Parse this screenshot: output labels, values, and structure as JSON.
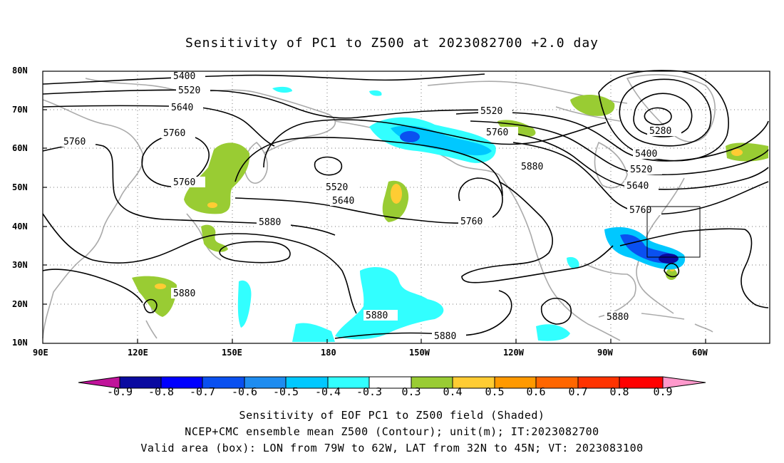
{
  "title": "Sensitivity of PC1 to Z500 at 2023082700 +2.0 day",
  "lat_labels": [
    "80N",
    "70N",
    "60N",
    "50N",
    "40N",
    "30N",
    "20N",
    "10N"
  ],
  "lon_labels": [
    "90E",
    "120E",
    "150E",
    "180",
    "150W",
    "120W",
    "90W",
    "60W"
  ],
  "contour_labels": [
    {
      "id": "c5400a",
      "text": "5400"
    },
    {
      "id": "c5520a",
      "text": "5520"
    },
    {
      "id": "c5640a",
      "text": "5640"
    },
    {
      "id": "c5760a",
      "text": "5760"
    },
    {
      "id": "c5760b",
      "text": "5760"
    },
    {
      "id": "c5760c",
      "text": "5760"
    },
    {
      "id": "c5520b",
      "text": "5520"
    },
    {
      "id": "c5640b",
      "text": "5640"
    },
    {
      "id": "c5880a",
      "text": "5880"
    },
    {
      "id": "c5880b",
      "text": "5880"
    },
    {
      "id": "c5880c",
      "text": "5880"
    },
    {
      "id": "c5880d",
      "text": "5880"
    },
    {
      "id": "c5760d",
      "text": "5760"
    },
    {
      "id": "c5520c",
      "text": "5520"
    },
    {
      "id": "c5760e",
      "text": "5760"
    },
    {
      "id": "c5880e",
      "text": "5880"
    },
    {
      "id": "c5280",
      "text": "5280"
    },
    {
      "id": "c5400b",
      "text": "5400"
    },
    {
      "id": "c5520d",
      "text": "5520"
    },
    {
      "id": "c5640c",
      "text": "5640"
    },
    {
      "id": "c5760f",
      "text": "5760"
    },
    {
      "id": "c5880f",
      "text": "5880"
    }
  ],
  "colorbar": {
    "labels": [
      "-0.9",
      "-0.8",
      "-0.7",
      "-0.6",
      "-0.5",
      "-0.4",
      "-0.3",
      "0.3",
      "0.4",
      "0.5",
      "0.6",
      "0.7",
      "0.8",
      "0.9"
    ],
    "colors": [
      "#c0139a",
      "#0a0aa0",
      "#0000ff",
      "#0a50f0",
      "#1e8cf0",
      "#00c8ff",
      "#32ffff",
      "#ffffff",
      "#99cc33",
      "#ffcc33",
      "#ff9900",
      "#ff6600",
      "#ff3300",
      "#ff0000",
      "#ff99cc"
    ]
  },
  "footer": {
    "line1": "Sensitivity of EOF PC1 to Z500 field (Shaded)",
    "line2": "NCEP+CMC ensemble mean Z500 (Contour); unit(m); IT:2023082700",
    "line3": "Valid area (box): LON from 79W to 62W, LAT from 32N to 45N; VT: 2023083100"
  },
  "valid_area": {
    "lon_min": -79,
    "lon_max": -62,
    "lat_min": 32,
    "lat_max": 45
  }
}
